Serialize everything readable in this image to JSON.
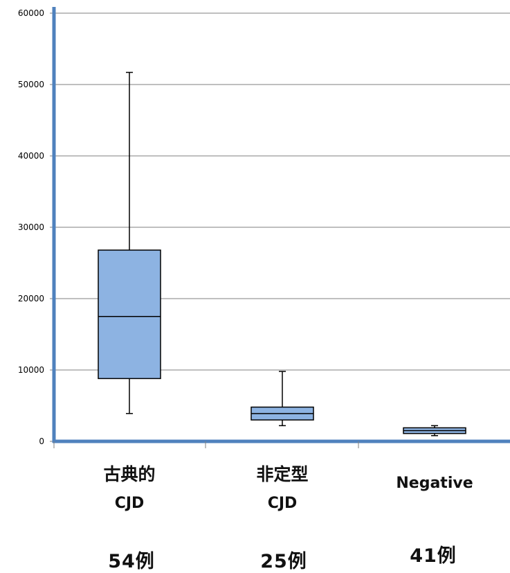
{
  "chart_data": {
    "type": "box",
    "ylim": [
      0,
      60000
    ],
    "y_ticks": [
      0,
      10000,
      20000,
      30000,
      40000,
      50000,
      60000
    ],
    "grid": true,
    "box_color": "#8db3e2",
    "axis_color": "#4f81bd",
    "categories": [
      {
        "line1": "古典的",
        "line2": "CJD",
        "count": "54例"
      },
      {
        "line1": "非定型",
        "line2": "CJD",
        "count": "25例"
      },
      {
        "line1": "",
        "line2": "Negative",
        "count": "41例"
      }
    ],
    "boxes": [
      {
        "min": 3900,
        "q1": 8800,
        "median": 17500,
        "q3": 26800,
        "max": 51700
      },
      {
        "min": 2200,
        "q1": 3000,
        "median": 3900,
        "q3": 4800,
        "max": 9800
      },
      {
        "min": 800,
        "q1": 1100,
        "median": 1500,
        "q3": 1900,
        "max": 2200
      }
    ]
  }
}
